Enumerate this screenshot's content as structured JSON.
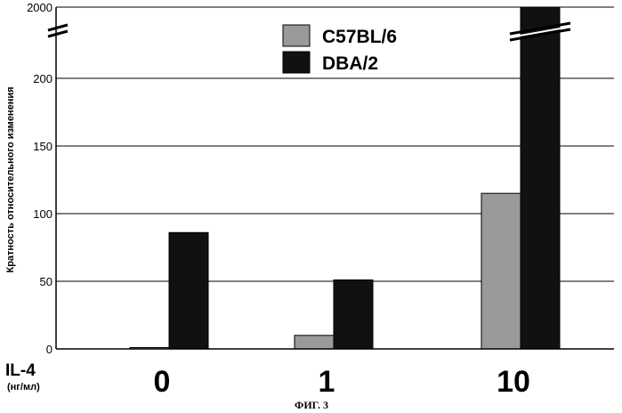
{
  "chart_data": {
    "type": "bar",
    "title": "",
    "ylabel": "Кратность относительного изменения",
    "xlabel": "IL-4",
    "xlabel_unit": "(нг/мл)",
    "caption": "ФИГ. 3",
    "categories": [
      "0",
      "1",
      "10"
    ],
    "y_ticks": [
      "0",
      "50",
      "100",
      "150",
      "200",
      "2000"
    ],
    "ylim": [
      0,
      200
    ],
    "axis_break": {
      "display_top": 250,
      "label": "2000"
    },
    "grid": true,
    "legend_position": "top-center",
    "series": [
      {
        "name": "C57BL/6",
        "values": [
          1,
          10,
          115
        ],
        "color": "#9a9a9a"
      },
      {
        "name": "DBA/2",
        "values": [
          86,
          51,
          2000
        ],
        "color": "#111111"
      }
    ]
  }
}
